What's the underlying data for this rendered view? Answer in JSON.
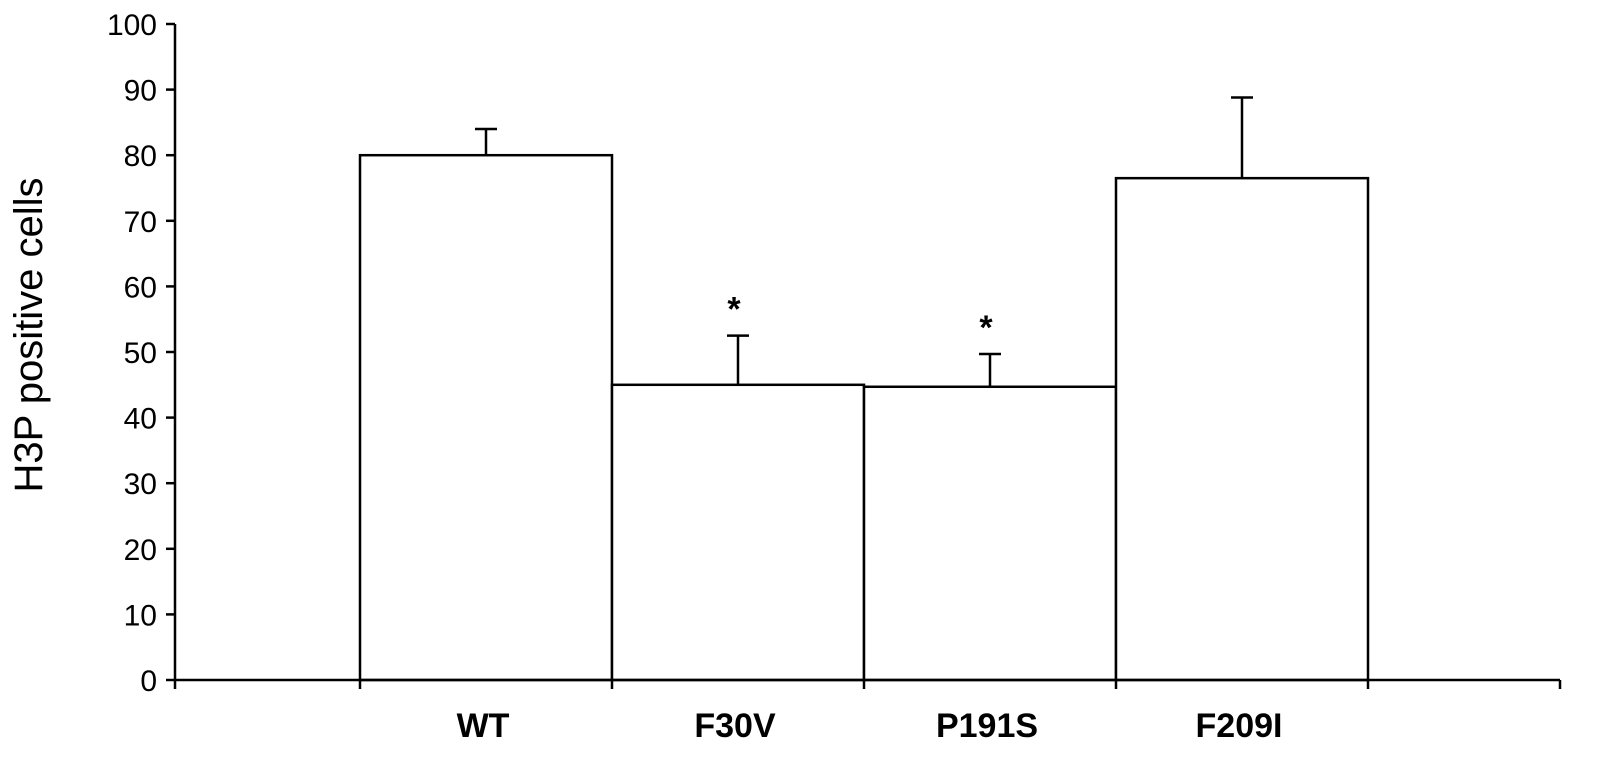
{
  "chart_data": {
    "type": "bar",
    "categories": [
      "WT",
      "F30V",
      "P191S",
      "F209I"
    ],
    "values": [
      80,
      45,
      44.7,
      76.5
    ],
    "errors": [
      4,
      7.5,
      5,
      12.3
    ],
    "significance": [
      "",
      "*",
      "*",
      ""
    ],
    "ylabel": "H3P positive cells",
    "xlabel": "",
    "title": "",
    "ylim": [
      0,
      100
    ],
    "yticks": [
      "0",
      "10",
      "20",
      "30",
      "40",
      "50",
      "60",
      "70",
      "80",
      "90",
      "100"
    ],
    "grid": false,
    "legend": "none",
    "colors": {
      "bar_fill": "#ffffff",
      "bar_stroke": "#000000"
    }
  }
}
